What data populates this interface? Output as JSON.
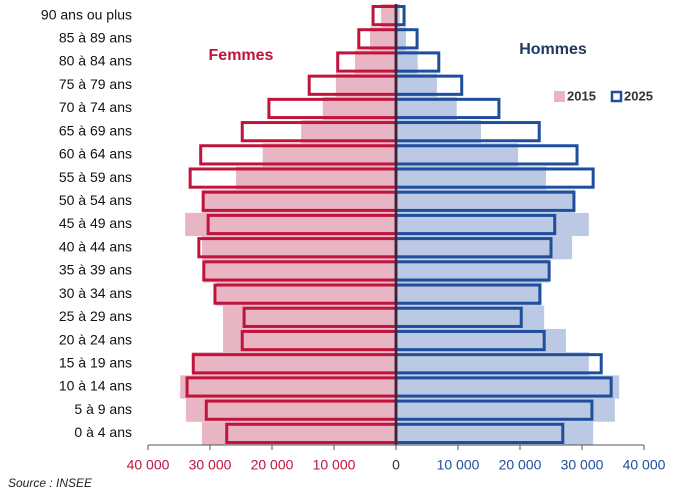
{
  "chart_data": {
    "type": "pyramid",
    "categories": [
      "90 ans ou plus",
      "85 à 89 ans",
      "80 à 84 ans",
      "75 à 79 ans",
      "70 à 74 ans",
      "65 à 69 ans",
      "60 à 64 ans",
      "55 à 59 ans",
      "50 à 54 ans",
      "45 à 49 ans",
      "40 à 44 ans",
      "35 à 39 ans",
      "30 à 34 ans",
      "25 à 29 ans",
      "20 à 24 ans",
      "15 à 19 ans",
      "10 à 14 ans",
      "5 à 9 ans",
      "0 à 4 ans"
    ],
    "series": [
      {
        "name": "2015",
        "style": "fill"
      },
      {
        "name": "2025",
        "style": "outline"
      }
    ],
    "groups": [
      {
        "name": "Femmes",
        "side": "left",
        "fill": "#e8b5c2",
        "stroke": "#c0143c",
        "values": [
          [
            2400,
            4200,
            6600,
            9700,
            11800,
            15300,
            21500,
            25800,
            31300,
            34000,
            31300,
            31000,
            29000,
            27900,
            27900,
            32900,
            34800,
            33900,
            31300
          ],
          [
            3700,
            6000,
            9400,
            14000,
            20500,
            24800,
            31500,
            33200,
            31100,
            30300,
            31800,
            31000,
            29200,
            24500,
            24800,
            32700,
            33700,
            30600,
            27300
          ]
        ]
      },
      {
        "name": "Hommes",
        "side": "right",
        "fill": "#bcc9e4",
        "stroke": "#1f4e9c",
        "values": [
          [
            600,
            1600,
            3500,
            6600,
            9800,
            13700,
            19700,
            24200,
            28900,
            31100,
            28400,
            24700,
            23500,
            23900,
            27400,
            31100,
            36000,
            35300,
            31800
          ],
          [
            1300,
            3400,
            6900,
            10600,
            16600,
            23100,
            29200,
            31800,
            28700,
            25600,
            25000,
            24700,
            23200,
            20200,
            23900,
            33100,
            34700,
            31600,
            26900
          ]
        ]
      }
    ],
    "xlim": [
      -40000,
      40000
    ],
    "xticks": [
      {
        "value": -40000,
        "label": "40 000"
      },
      {
        "value": -30000,
        "label": "30 000"
      },
      {
        "value": -20000,
        "label": "20 000"
      },
      {
        "value": -10000,
        "label": "10 000"
      },
      0,
      {
        "value": 10000,
        "label": "10 000"
      },
      {
        "value": 20000,
        "label": "20 000"
      },
      {
        "value": 30000,
        "label": "30 000"
      },
      {
        "value": 40000,
        "label": "40 000"
      }
    ],
    "source": "Source : INSEE"
  }
}
